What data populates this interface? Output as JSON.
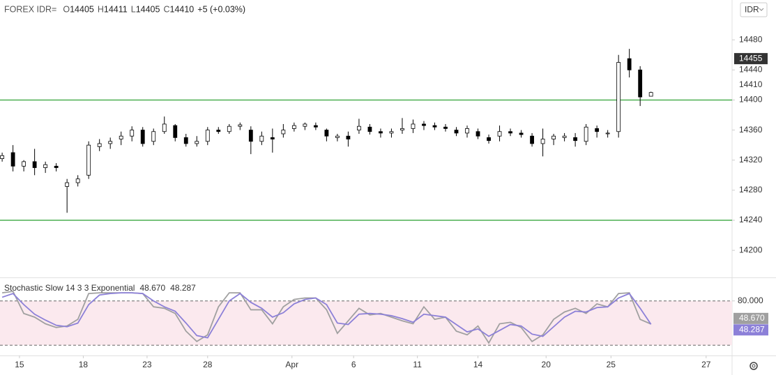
{
  "header": {
    "symbol": "FOREX IDR=",
    "items": [
      {
        "key": "O",
        "value": "14405"
      },
      {
        "key": "H",
        "value": "14411"
      },
      {
        "key": "L",
        "value": "14405"
      },
      {
        "key": "C",
        "value": "14410"
      }
    ],
    "change": "+5 (+0.03%)",
    "currency": "IDR"
  },
  "chart_data": [
    {
      "type": "candlestick",
      "open": [
        14322,
        14330,
        14312,
        14318,
        14310,
        14312,
        14285,
        14290,
        14300,
        14338,
        14342,
        14348,
        14352,
        14360,
        14345,
        14358,
        14366,
        14350,
        14342,
        14345,
        14360,
        14358,
        14365,
        14360,
        14345,
        14350,
        14355,
        14362,
        14365,
        14366,
        14360,
        14350,
        14352,
        14360,
        14364,
        14358,
        14356,
        14360,
        14362,
        14368,
        14366,
        14364,
        14360,
        14356,
        14358,
        14350,
        14352,
        14358,
        14356,
        14352,
        14342,
        14348,
        14350,
        14350,
        14345,
        14362,
        14355,
        14358,
        14455,
        14440,
        14405
      ],
      "high": [
        14330,
        14340,
        14320,
        14335,
        14318,
        14316,
        14295,
        14300,
        14345,
        14348,
        14350,
        14358,
        14365,
        14364,
        14362,
        14378,
        14368,
        14355,
        14352,
        14364,
        14364,
        14368,
        14370,
        14365,
        14358,
        14362,
        14368,
        14370,
        14370,
        14370,
        14362,
        14355,
        14358,
        14375,
        14368,
        14362,
        14362,
        14376,
        14374,
        14372,
        14370,
        14368,
        14364,
        14366,
        14362,
        14354,
        14366,
        14362,
        14360,
        14356,
        14362,
        14355,
        14356,
        14356,
        14368,
        14366,
        14360,
        14460,
        14468,
        14445,
        14411
      ],
      "low": [
        14318,
        14305,
        14305,
        14300,
        14303,
        14305,
        14250,
        14285,
        14295,
        14332,
        14335,
        14340,
        14345,
        14338,
        14340,
        14355,
        14345,
        14338,
        14338,
        14340,
        14355,
        14355,
        14360,
        14328,
        14340,
        14330,
        14350,
        14358,
        14360,
        14360,
        14345,
        14345,
        14338,
        14355,
        14354,
        14350,
        14350,
        14355,
        14356,
        14360,
        14360,
        14358,
        14352,
        14350,
        14348,
        14342,
        14345,
        14352,
        14350,
        14338,
        14325,
        14340,
        14345,
        14338,
        14340,
        14350,
        14350,
        14350,
        14430,
        14392,
        14405
      ],
      "close": [
        14326,
        14312,
        14318,
        14310,
        14314,
        14310,
        14290,
        14295,
        14340,
        14342,
        14345,
        14352,
        14360,
        14342,
        14358,
        14368,
        14350,
        14342,
        14345,
        14360,
        14358,
        14365,
        14367,
        14345,
        14352,
        14348,
        14360,
        14366,
        14368,
        14364,
        14352,
        14352,
        14348,
        14365,
        14358,
        14356,
        14358,
        14362,
        14368,
        14366,
        14364,
        14362,
        14356,
        14362,
        14352,
        14346,
        14358,
        14356,
        14354,
        14342,
        14348,
        14352,
        14352,
        14346,
        14364,
        14358,
        14356,
        14450,
        14440,
        14404,
        14410
      ],
      "ylim": [
        14164,
        14533
      ],
      "yticks": [
        14200,
        14240,
        14280,
        14320,
        14360,
        14400,
        14440,
        14480
      ],
      "hlines": [
        14400,
        14240
      ],
      "hline_color": "#4caf50",
      "last_price": 14410,
      "price_tag": 14455,
      "xlim": [
        -0.2,
        67.5
      ],
      "xticks": [
        {
          "value": 1.6,
          "label": "15"
        },
        {
          "value": 7.5,
          "label": "18"
        },
        {
          "value": 13.4,
          "label": "23"
        },
        {
          "value": 19,
          "label": "28"
        },
        {
          "value": 26.8,
          "label": "Apr"
        },
        {
          "value": 32.5,
          "label": "6"
        },
        {
          "value": 38.4,
          "label": "11"
        },
        {
          "value": 44,
          "label": "14"
        },
        {
          "value": 50.3,
          "label": "20"
        },
        {
          "value": 56.3,
          "label": "25"
        },
        {
          "value": 65.1,
          "label": "27"
        }
      ]
    },
    {
      "type": "line",
      "title": "Stochastic Slow 14 3 3 Exponential",
      "series": [
        {
          "color": "#a0a0a0",
          "values": [
            91,
            93,
            63,
            58,
            49,
            44,
            46,
            55,
            90,
            91,
            91,
            91,
            91,
            90,
            72,
            70,
            63,
            39,
            25,
            34,
            72,
            91,
            91,
            68,
            68,
            49,
            72,
            82,
            84,
            84,
            68,
            36,
            53,
            70,
            61,
            63,
            58,
            53,
            49,
            72,
            55,
            58,
            39,
            34,
            46,
            23,
            49,
            51,
            44,
            25,
            34,
            55,
            65,
            70,
            63,
            76,
            72,
            90,
            91,
            55,
            48.67
          ],
          "current": {
            "value": 48.67,
            "label": "48.670"
          }
        },
        {
          "color": "#8c80d8",
          "values": [
            85,
            90,
            75,
            62,
            54,
            47,
            45,
            50,
            75,
            88,
            90,
            91,
            91,
            90,
            80,
            72,
            66,
            50,
            33,
            30,
            55,
            80,
            90,
            78,
            70,
            58,
            64,
            76,
            82,
            84,
            75,
            50,
            48,
            62,
            63,
            62,
            60,
            56,
            51,
            62,
            60,
            58,
            48,
            38,
            42,
            32,
            40,
            48,
            46,
            35,
            32,
            45,
            58,
            66,
            65,
            71,
            72,
            84,
            90,
            70,
            48.287
          ],
          "current": {
            "value": 48.287,
            "label": "48.287"
          }
        }
      ],
      "ylim": [
        6,
        110
      ],
      "yticks": [
        {
          "value": 80,
          "label": "80.000"
        }
      ],
      "bands": [
        20,
        80
      ],
      "band_color": "#fbe9ee"
    }
  ]
}
